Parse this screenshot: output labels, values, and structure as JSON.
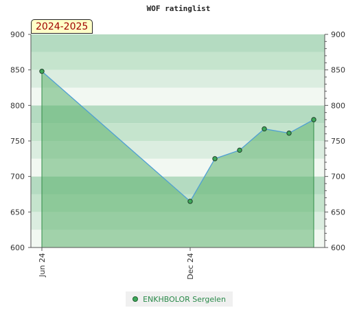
{
  "chart_data": {
    "type": "area",
    "title": "WOF ratinglist",
    "annotation": "2024-2025",
    "ylim": [
      600,
      900
    ],
    "y_ticks": [
      600,
      650,
      700,
      750,
      800,
      850,
      900
    ],
    "x_ticks": [
      "Jun 24",
      "Dec 24"
    ],
    "legend_position": "bottom-center",
    "series": [
      {
        "name": "ENKHBOLOR Sergelen",
        "points": [
          {
            "x": "2024-06",
            "y": 848
          },
          {
            "x": "2024-12",
            "y": 665
          },
          {
            "x": "2025-01",
            "y": 725
          },
          {
            "x": "2025-02",
            "y": 737
          },
          {
            "x": "2025-03",
            "y": 767
          },
          {
            "x": "2025-04",
            "y": 761
          },
          {
            "x": "2025-05",
            "y": 780
          }
        ]
      }
    ],
    "colors": {
      "line": "#4f9fd4",
      "fill": "#5fb36f",
      "marker": "#3ea95a"
    }
  }
}
